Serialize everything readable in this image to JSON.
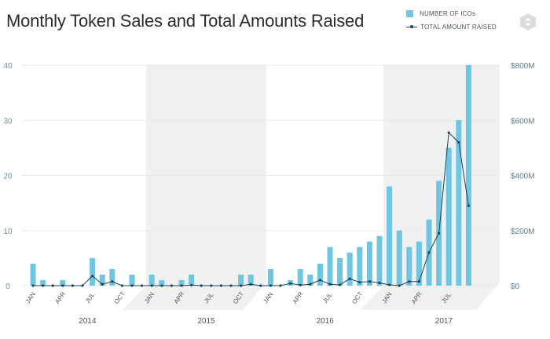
{
  "title": "Monthly Token Sales and Total Amounts Raised",
  "legend": {
    "bars_label": "NUMBER OF ICOs",
    "line_label": "TOTAL AMOUNT RAISED"
  },
  "colors": {
    "bar": "#6ec6e3",
    "line": "#1d4350",
    "band": "#f0f0f0"
  },
  "chart_data": {
    "type": "bar",
    "title": "Monthly Token Sales and Total Amounts Raised",
    "x_month_labels": [
      "JAN",
      "APR",
      "JUL",
      "OCT",
      "JAN",
      "APR",
      "JUL",
      "OCT",
      "JAN",
      "APR",
      "JUL",
      "OCT",
      "JAN",
      "APR",
      "JUL"
    ],
    "year_labels": [
      "2014",
      "2015",
      "2016",
      "2017"
    ],
    "left_ticks": [
      "0",
      "10",
      "20",
      "30",
      "40"
    ],
    "right_ticks": [
      "$0",
      "$200M",
      "$400M",
      "$600M",
      "$800M"
    ],
    "ylim_left": [
      0,
      40
    ],
    "ylim_right": [
      0,
      800
    ],
    "grid": true,
    "legend_position": "top-right",
    "series": [
      {
        "name": "NUMBER OF ICOs",
        "type": "bar",
        "axis": "left",
        "values": [
          4,
          1,
          0,
          1,
          0,
          0,
          5,
          2,
          3,
          0,
          2,
          0,
          2,
          1,
          0,
          1,
          2,
          0,
          0,
          0,
          0,
          2,
          2,
          0,
          3,
          0,
          1,
          3,
          2,
          4,
          7,
          5,
          6,
          7,
          8,
          9,
          18,
          10,
          7,
          8,
          12,
          19,
          25,
          30,
          40
        ]
      },
      {
        "name": "TOTAL AMOUNT RAISED",
        "type": "line",
        "axis": "right",
        "unit": "$M",
        "values": [
          0,
          0,
          0,
          0,
          0,
          0,
          35,
          5,
          15,
          0,
          0,
          0,
          0,
          0,
          0,
          0,
          2,
          0,
          0,
          0,
          0,
          0,
          5,
          0,
          0,
          0,
          8,
          2,
          5,
          20,
          5,
          3,
          25,
          12,
          15,
          10,
          3,
          0,
          15,
          15,
          120,
          190,
          555,
          520,
          290
        ]
      }
    ]
  }
}
